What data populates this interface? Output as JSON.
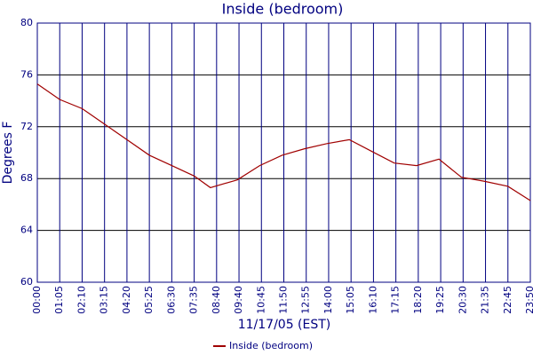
{
  "chart_data": {
    "type": "line",
    "title": "Inside (bedroom)",
    "x_label": "11/17/05 (EST)",
    "y_label": "Degrees F",
    "x": [
      0,
      65,
      130,
      195,
      260,
      325,
      390,
      455,
      502,
      580,
      645,
      710,
      775,
      840,
      905,
      970,
      1035,
      1100,
      1165,
      1230,
      1295,
      1365,
      1430
    ],
    "series": [
      {
        "name": "Inside (bedroom)",
        "color": "#a00000",
        "values": [
          75.3,
          74.1,
          73.4,
          72.2,
          71.0,
          69.8,
          69.0,
          68.2,
          67.3,
          67.9,
          69.0,
          69.8,
          70.3,
          70.7,
          71.0,
          70.1,
          69.2,
          69.0,
          69.5,
          68.1,
          67.8,
          67.4,
          66.3
        ]
      }
    ],
    "xlim": [
      0,
      1430
    ],
    "xticks": [
      {
        "value": 0,
        "label": "00:00"
      },
      {
        "value": 65,
        "label": "01:05"
      },
      {
        "value": 130,
        "label": "02:10"
      },
      {
        "value": 195,
        "label": "03:15"
      },
      {
        "value": 260,
        "label": "04:20"
      },
      {
        "value": 325,
        "label": "05:25"
      },
      {
        "value": 390,
        "label": "06:30"
      },
      {
        "value": 455,
        "label": "07:35"
      },
      {
        "value": 520,
        "label": "08:40"
      },
      {
        "value": 585,
        "label": "09:40"
      },
      {
        "value": 650,
        "label": "10:45"
      },
      {
        "value": 715,
        "label": "11:50"
      },
      {
        "value": 780,
        "label": "12:55"
      },
      {
        "value": 845,
        "label": "14:00"
      },
      {
        "value": 910,
        "label": "15:05"
      },
      {
        "value": 975,
        "label": "16:10"
      },
      {
        "value": 1040,
        "label": "17:15"
      },
      {
        "value": 1105,
        "label": "18:20"
      },
      {
        "value": 1170,
        "label": "19:25"
      },
      {
        "value": 1235,
        "label": "20:30"
      },
      {
        "value": 1300,
        "label": "21:35"
      },
      {
        "value": 1365,
        "label": "22:45"
      },
      {
        "value": 1430,
        "label": "23:50"
      }
    ],
    "ylim": [
      60,
      80
    ],
    "yticks": [
      60,
      64,
      68,
      72,
      76,
      80
    ],
    "grid": true
  }
}
